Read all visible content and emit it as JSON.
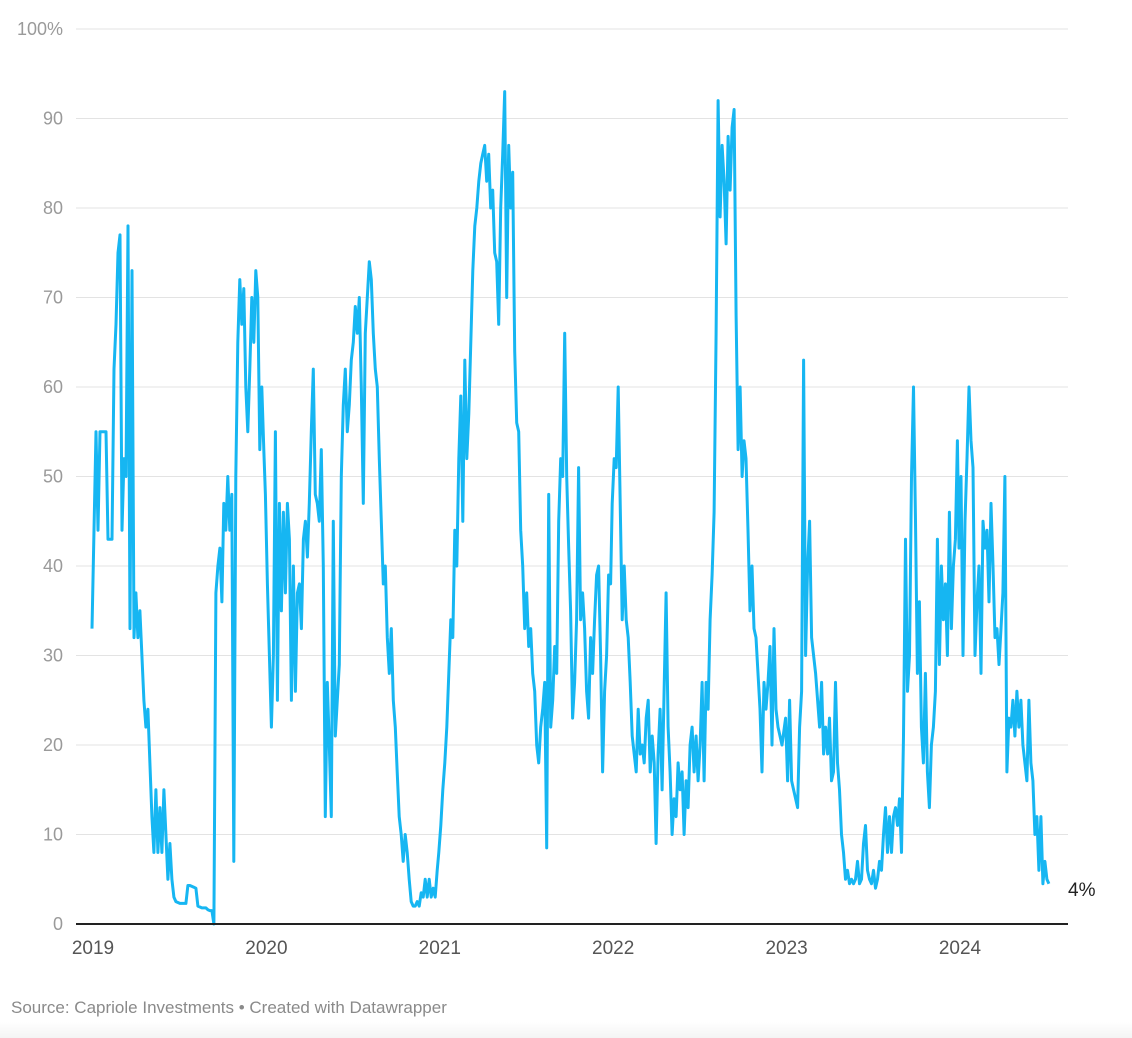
{
  "chart_data": {
    "type": "line",
    "title": "",
    "xlabel": "",
    "ylabel": "",
    "ylim": [
      0,
      100
    ],
    "y_ticks": [
      "0",
      "10",
      "20",
      "30",
      "40",
      "50",
      "60",
      "70",
      "80",
      "90",
      "100%"
    ],
    "x_ticks": [
      "2019",
      "2020",
      "2021",
      "2022",
      "2023",
      "2024"
    ],
    "grid": true,
    "line_color": "#16b6f2",
    "end_label": "4%",
    "series_by_year": [
      {
        "year": 2019,
        "values": [
          33,
          44,
          55,
          44,
          55,
          55,
          55,
          55,
          43,
          43,
          43,
          62,
          67,
          75,
          77,
          44,
          52,
          50,
          78,
          33,
          73,
          32,
          37,
          32,
          35,
          30,
          25,
          22,
          24,
          18,
          12,
          8,
          15,
          8,
          13,
          8,
          15,
          10,
          5,
          9,
          5,
          3,
          2.5,
          2.4,
          2.3,
          2.3,
          2.3,
          2.3,
          4.3,
          4.3,
          4.2,
          4.1,
          4,
          2,
          1.9,
          1.8,
          1.8,
          1.8,
          1.6,
          1.5,
          1.5,
          0,
          37,
          40,
          42,
          36,
          47,
          44,
          50,
          44,
          48,
          7,
          50,
          65,
          72,
          67,
          71,
          60,
          55,
          62,
          70,
          65,
          73,
          70,
          53,
          60,
          53
        ]
      },
      {
        "year": 2020,
        "values": [
          48,
          38,
          30,
          22,
          30,
          55,
          25,
          47,
          35,
          46,
          37,
          47,
          43,
          25,
          40,
          26,
          37,
          38,
          33,
          43,
          45,
          41,
          47,
          55,
          62,
          48,
          47,
          45,
          53,
          40,
          12,
          27,
          20,
          12,
          45,
          21,
          25,
          29,
          50,
          58,
          62,
          55,
          58,
          63,
          65,
          69,
          66,
          70,
          60,
          47,
          66,
          70,
          74,
          72,
          66,
          62,
          60,
          52,
          45,
          38,
          40,
          32,
          28,
          33,
          25,
          22,
          17,
          12,
          10,
          7,
          10,
          8,
          5,
          2.5,
          2,
          2,
          2.5,
          2,
          3.5,
          3,
          5,
          3,
          5,
          3,
          4,
          3,
          6
        ]
      },
      {
        "year": 2021,
        "values": [
          8,
          11,
          15,
          18,
          22,
          28,
          34,
          32,
          44,
          40,
          52,
          59,
          45,
          63,
          52,
          57,
          65,
          73,
          78,
          80,
          83,
          85,
          86,
          87,
          83,
          86,
          80,
          82,
          75,
          74,
          67,
          80,
          86,
          93,
          70,
          87,
          80,
          84,
          64,
          56,
          55,
          44,
          40,
          33,
          37,
          31,
          33,
          28,
          26,
          20,
          18,
          22,
          24,
          27,
          8.5,
          48,
          22,
          25,
          31,
          28,
          45,
          52,
          50,
          66,
          50,
          42,
          35,
          23,
          27,
          34,
          51,
          34,
          37,
          33,
          26,
          23,
          32,
          28,
          34,
          39,
          40,
          30,
          17,
          26,
          30,
          39,
          38
        ]
      },
      {
        "year": 2022,
        "values": [
          47,
          52,
          51,
          60,
          47,
          34,
          40,
          34,
          32,
          27,
          21,
          19,
          17,
          24,
          19,
          20,
          18,
          23,
          25,
          17,
          21,
          18,
          9,
          19,
          24,
          15,
          26,
          37,
          22,
          17,
          10,
          14,
          12,
          18,
          15,
          17,
          10,
          16,
          13,
          20,
          22,
          17,
          21,
          16,
          20,
          27,
          16,
          27,
          24,
          34,
          39,
          46,
          66,
          92,
          79,
          87,
          83,
          76,
          88,
          82,
          89,
          91,
          68,
          53,
          60,
          50,
          54,
          52,
          44,
          35,
          40,
          33,
          32,
          28,
          24,
          17,
          27,
          24,
          27,
          31,
          20,
          33,
          24,
          22,
          21,
          20
        ]
      },
      {
        "year": 2023,
        "values": [
          23,
          16,
          25,
          16,
          15,
          14,
          13,
          22,
          26,
          63,
          30,
          40,
          45,
          32,
          30,
          28,
          25,
          22,
          27,
          19,
          22,
          19,
          23,
          16,
          17,
          27,
          18,
          15,
          10,
          8,
          5,
          6,
          4.5,
          5,
          4.5,
          5,
          7,
          4.5,
          5,
          9,
          11,
          6,
          5,
          4.5,
          6,
          4,
          5,
          7,
          6,
          10,
          13,
          8,
          12,
          8,
          12,
          13,
          11,
          14,
          8,
          21,
          43,
          26,
          30,
          50,
          60,
          45,
          28,
          36,
          22,
          18,
          28,
          17,
          13,
          20,
          22,
          26,
          43,
          29,
          40,
          34,
          38,
          30,
          46,
          33,
          40,
          43,
          54
        ]
      },
      {
        "year": 2024,
        "values": [
          42,
          50,
          30,
          45,
          52,
          60,
          54,
          51,
          30,
          36,
          40,
          28,
          45,
          42,
          44,
          36,
          47,
          40,
          32,
          33,
          29,
          33,
          37,
          50,
          17,
          23,
          22,
          25,
          21,
          26,
          22,
          25,
          20,
          18,
          16,
          25,
          18,
          16,
          10,
          12,
          6,
          12,
          4.5,
          7,
          5,
          4.5
        ]
      }
    ]
  },
  "footer": {
    "source": "Source: Capriole Investments • Created with Datawrapper"
  }
}
